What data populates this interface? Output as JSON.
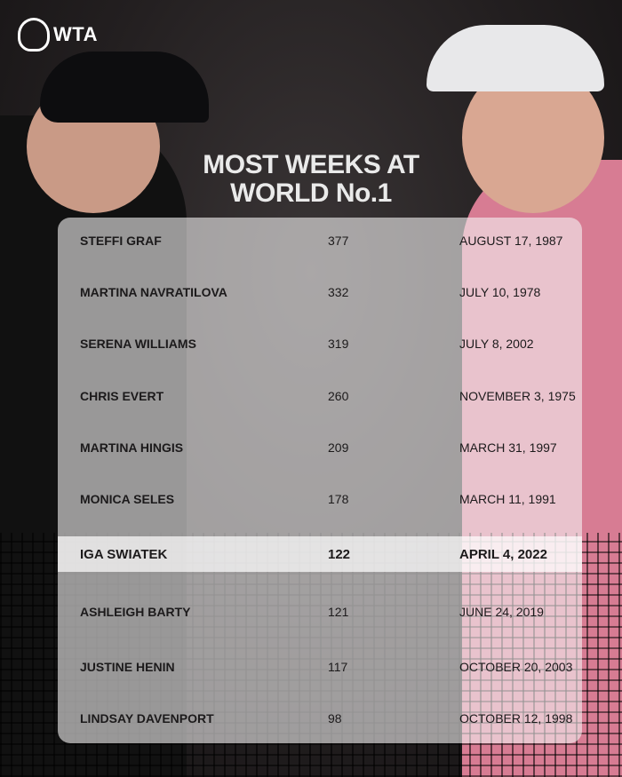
{
  "brand": {
    "logo_text": "WTA"
  },
  "title_lines": [
    "MOST WEEKS AT",
    "WORLD No.1"
  ],
  "rows": [
    {
      "name": "STEFFI GRAF",
      "weeks": "377",
      "date": "AUGUST 17, 1987",
      "highlight": false
    },
    {
      "name": "MARTINA NAVRATILOVA",
      "weeks": "332",
      "date": "JULY 10, 1978",
      "highlight": false
    },
    {
      "name": "SERENA WILLIAMS",
      "weeks": "319",
      "date": "JULY 8, 2002",
      "highlight": false
    },
    {
      "name": "CHRIS EVERT",
      "weeks": "260",
      "date": "NOVEMBER 3, 1975",
      "highlight": false
    },
    {
      "name": "MARTINA HINGIS",
      "weeks": "209",
      "date": "MARCH 31, 1997",
      "highlight": false
    },
    {
      "name": "MONICA SELES",
      "weeks": "178",
      "date": "MARCH 11, 1991",
      "highlight": false
    },
    {
      "name": "IGA SWIATEK",
      "weeks": "122",
      "date": "APRIL 4, 2022",
      "highlight": true
    },
    {
      "name": "ASHLEIGH BARTY",
      "weeks": "121",
      "date": "JUNE 24, 2019",
      "highlight": false
    },
    {
      "name": "JUSTINE HENIN",
      "weeks": "117",
      "date": "OCTOBER 20, 2003",
      "highlight": false
    },
    {
      "name": "LINDSAY DAVENPORT",
      "weeks": "98",
      "date": "OCTOBER 12, 1998",
      "highlight": false
    }
  ]
}
